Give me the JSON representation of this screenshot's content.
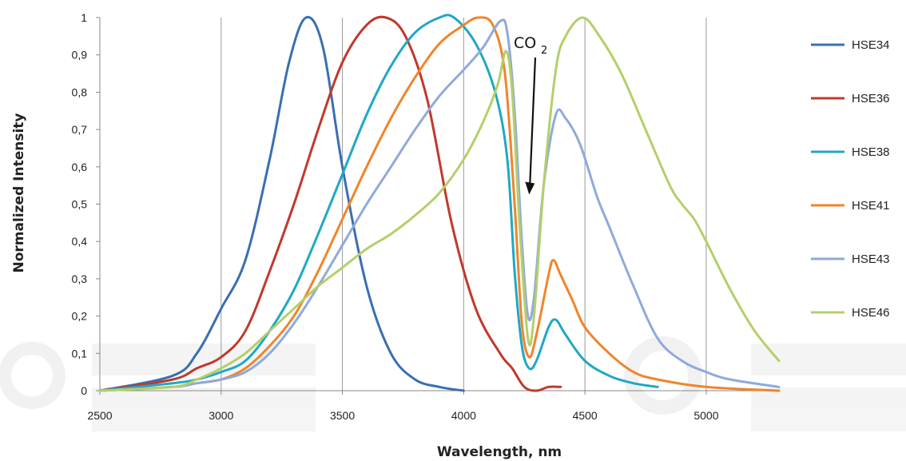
{
  "chart_data": {
    "type": "line",
    "xlabel": "Wavelength, nm",
    "ylabel": "Normalized Intensity",
    "xlim": [
      2500,
      5300
    ],
    "ylim": [
      0,
      1
    ],
    "xticks": [
      "2500",
      "3000",
      "3500",
      "4000",
      "4500",
      "5000"
    ],
    "yticks": [
      "0",
      "0,1",
      "0,2",
      "0,3",
      "0,4",
      "0,5",
      "0,6",
      "0,7",
      "0,8",
      "0,9",
      "1"
    ],
    "grid": "vertical",
    "legend_position": "right",
    "annotation": {
      "text": "CO",
      "subscript": "2",
      "arrow_to": [
        4270,
        0.53
      ]
    },
    "series": [
      {
        "name": "HSE34",
        "color": "#3a6fb0",
        "points": [
          [
            2500,
            0
          ],
          [
            2800,
            0.04
          ],
          [
            2900,
            0.1
          ],
          [
            3000,
            0.22
          ],
          [
            3100,
            0.35
          ],
          [
            3200,
            0.62
          ],
          [
            3280,
            0.88
          ],
          [
            3350,
            1.0
          ],
          [
            3420,
            0.92
          ],
          [
            3500,
            0.6
          ],
          [
            3600,
            0.28
          ],
          [
            3700,
            0.1
          ],
          [
            3800,
            0.03
          ],
          [
            3900,
            0.01
          ],
          [
            4000,
            0
          ]
        ]
      },
      {
        "name": "HSE36",
        "color": "#c0392b",
        "points": [
          [
            2500,
            0
          ],
          [
            2800,
            0.03
          ],
          [
            2900,
            0.06
          ],
          [
            3000,
            0.09
          ],
          [
            3100,
            0.16
          ],
          [
            3200,
            0.32
          ],
          [
            3300,
            0.5
          ],
          [
            3400,
            0.7
          ],
          [
            3500,
            0.88
          ],
          [
            3600,
            0.98
          ],
          [
            3680,
            1.0
          ],
          [
            3760,
            0.95
          ],
          [
            3850,
            0.78
          ],
          [
            3950,
            0.45
          ],
          [
            4050,
            0.22
          ],
          [
            4150,
            0.1
          ],
          [
            4200,
            0.06
          ],
          [
            4250,
            0.01
          ],
          [
            4300,
            0
          ],
          [
            4350,
            0.01
          ],
          [
            4400,
            0.01
          ]
        ]
      },
      {
        "name": "HSE38",
        "color": "#1fa8c4",
        "points": [
          [
            2500,
            0
          ],
          [
            2800,
            0.02
          ],
          [
            2900,
            0.03
          ],
          [
            3000,
            0.05
          ],
          [
            3100,
            0.08
          ],
          [
            3200,
            0.16
          ],
          [
            3300,
            0.27
          ],
          [
            3400,
            0.42
          ],
          [
            3500,
            0.58
          ],
          [
            3600,
            0.74
          ],
          [
            3700,
            0.87
          ],
          [
            3800,
            0.96
          ],
          [
            3900,
            1.0
          ],
          [
            3960,
            1.0
          ],
          [
            4050,
            0.93
          ],
          [
            4130,
            0.8
          ],
          [
            4180,
            0.62
          ],
          [
            4210,
            0.32
          ],
          [
            4240,
            0.12
          ],
          [
            4270,
            0.06
          ],
          [
            4300,
            0.08
          ],
          [
            4350,
            0.17
          ],
          [
            4380,
            0.19
          ],
          [
            4420,
            0.15
          ],
          [
            4500,
            0.08
          ],
          [
            4600,
            0.04
          ],
          [
            4700,
            0.02
          ],
          [
            4800,
            0.01
          ]
        ]
      },
      {
        "name": "HSE41",
        "color": "#f0852b",
        "points": [
          [
            2500,
            0
          ],
          [
            2800,
            0.01
          ],
          [
            2900,
            0.02
          ],
          [
            3000,
            0.03
          ],
          [
            3100,
            0.06
          ],
          [
            3200,
            0.12
          ],
          [
            3300,
            0.2
          ],
          [
            3400,
            0.32
          ],
          [
            3500,
            0.46
          ],
          [
            3600,
            0.6
          ],
          [
            3700,
            0.73
          ],
          [
            3800,
            0.84
          ],
          [
            3900,
            0.93
          ],
          [
            4000,
            0.98
          ],
          [
            4060,
            1.0
          ],
          [
            4120,
            0.98
          ],
          [
            4170,
            0.85
          ],
          [
            4210,
            0.5
          ],
          [
            4240,
            0.18
          ],
          [
            4270,
            0.09
          ],
          [
            4300,
            0.15
          ],
          [
            4350,
            0.31
          ],
          [
            4370,
            0.35
          ],
          [
            4400,
            0.31
          ],
          [
            4450,
            0.24
          ],
          [
            4500,
            0.17
          ],
          [
            4600,
            0.1
          ],
          [
            4700,
            0.05
          ],
          [
            4800,
            0.03
          ],
          [
            5000,
            0.01
          ],
          [
            5300,
            0
          ]
        ]
      },
      {
        "name": "HSE43",
        "color": "#8eaadb",
        "points": [
          [
            2500,
            0
          ],
          [
            2800,
            0.01
          ],
          [
            2900,
            0.02
          ],
          [
            3000,
            0.03
          ],
          [
            3100,
            0.05
          ],
          [
            3200,
            0.1
          ],
          [
            3300,
            0.18
          ],
          [
            3400,
            0.28
          ],
          [
            3500,
            0.39
          ],
          [
            3600,
            0.5
          ],
          [
            3700,
            0.6
          ],
          [
            3800,
            0.7
          ],
          [
            3900,
            0.79
          ],
          [
            4000,
            0.86
          ],
          [
            4080,
            0.92
          ],
          [
            4150,
            0.99
          ],
          [
            4180,
            0.96
          ],
          [
            4210,
            0.75
          ],
          [
            4240,
            0.4
          ],
          [
            4265,
            0.2
          ],
          [
            4290,
            0.25
          ],
          [
            4330,
            0.55
          ],
          [
            4380,
            0.74
          ],
          [
            4420,
            0.73
          ],
          [
            4480,
            0.66
          ],
          [
            4550,
            0.52
          ],
          [
            4600,
            0.44
          ],
          [
            4700,
            0.28
          ],
          [
            4800,
            0.14
          ],
          [
            4900,
            0.08
          ],
          [
            5000,
            0.05
          ],
          [
            5100,
            0.03
          ],
          [
            5300,
            0.01
          ]
        ]
      },
      {
        "name": "HSE46",
        "color": "#b4cf6a",
        "points": [
          [
            2500,
            0
          ],
          [
            2800,
            0.01
          ],
          [
            2900,
            0.03
          ],
          [
            3000,
            0.06
          ],
          [
            3100,
            0.1
          ],
          [
            3200,
            0.16
          ],
          [
            3300,
            0.22
          ],
          [
            3400,
            0.28
          ],
          [
            3500,
            0.33
          ],
          [
            3600,
            0.38
          ],
          [
            3700,
            0.42
          ],
          [
            3800,
            0.47
          ],
          [
            3900,
            0.53
          ],
          [
            4000,
            0.62
          ],
          [
            4080,
            0.72
          ],
          [
            4140,
            0.82
          ],
          [
            4175,
            0.91
          ],
          [
            4200,
            0.8
          ],
          [
            4230,
            0.45
          ],
          [
            4265,
            0.14
          ],
          [
            4290,
            0.2
          ],
          [
            4330,
            0.55
          ],
          [
            4380,
            0.86
          ],
          [
            4420,
            0.95
          ],
          [
            4490,
            1.0
          ],
          [
            4560,
            0.95
          ],
          [
            4650,
            0.85
          ],
          [
            4750,
            0.7
          ],
          [
            4850,
            0.55
          ],
          [
            4900,
            0.5
          ],
          [
            4950,
            0.46
          ],
          [
            5000,
            0.4
          ],
          [
            5100,
            0.27
          ],
          [
            5200,
            0.16
          ],
          [
            5300,
            0.08
          ]
        ]
      }
    ]
  }
}
